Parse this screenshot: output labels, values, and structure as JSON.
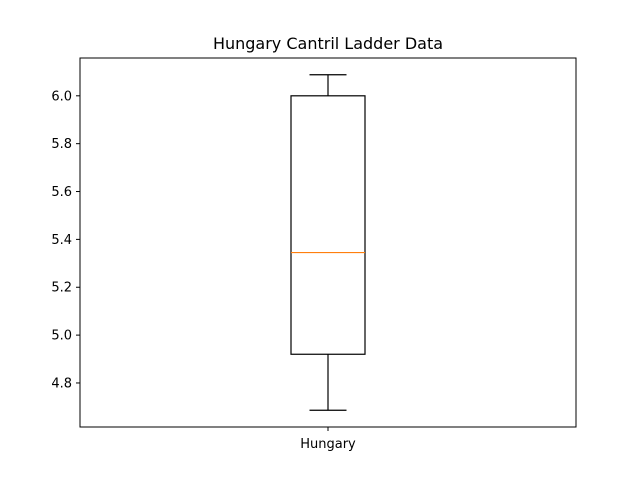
{
  "chart_data": {
    "type": "box",
    "title": "Hungary Cantril Ladder Data",
    "xlabel": "",
    "ylabel": "",
    "categories": [
      "Hungary"
    ],
    "boxes": [
      {
        "name": "Hungary",
        "whisker_low": 4.686,
        "q1": 4.92,
        "median": 5.345,
        "q3": 6.0,
        "whisker_high": 6.088
      }
    ],
    "yticks": [
      4.8,
      5.0,
      5.2,
      5.4,
      5.6,
      5.8,
      6.0
    ],
    "ytick_labels": [
      "4.8",
      "5.0",
      "5.2",
      "5.4",
      "5.6",
      "5.8",
      "6.0"
    ],
    "ylim": [
      4.616,
      6.158
    ],
    "grid": false,
    "colors": {
      "box": "#000000",
      "median": "#ff7f0e",
      "whisker": "#000000"
    }
  }
}
